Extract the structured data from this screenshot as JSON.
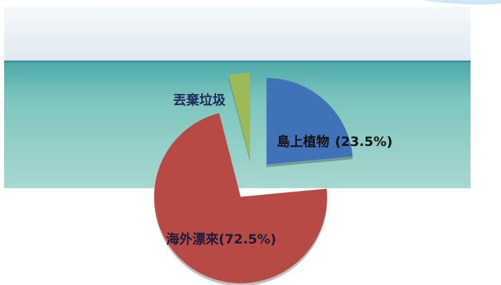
{
  "chart_data": {
    "type": "pie",
    "categories": [
      "島上植物",
      "海外漂來",
      "丟棄垃圾"
    ],
    "values": [
      23.5,
      72.5,
      4
    ],
    "value_labels": [
      "(23.5%)",
      "(72.5%)",
      null
    ],
    "colors": [
      "#3f72b6",
      "#b84a45",
      "#9cbb58"
    ]
  }
}
